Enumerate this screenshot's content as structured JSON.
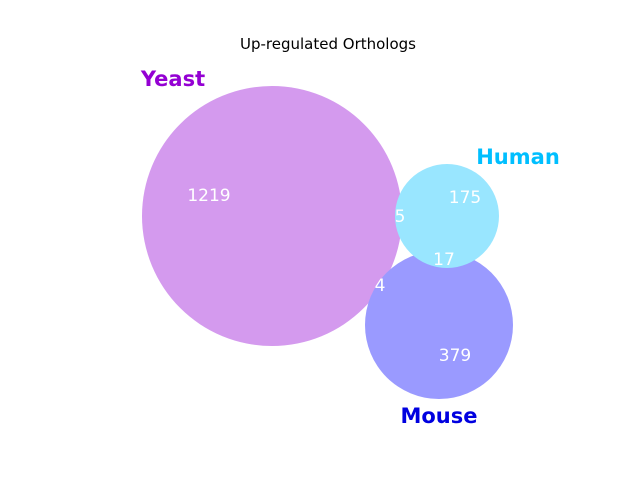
{
  "chart_data": {
    "type": "venn",
    "title": "Up-regulated Orthologs",
    "sets": [
      {
        "name": "Yeast",
        "size": 1228,
        "label_color": "#9400d3",
        "fill": "#d49aee"
      },
      {
        "name": "Human",
        "size": 197,
        "label_color": "#00bfff",
        "fill": "#99e6ff"
      },
      {
        "name": "Mouse",
        "size": 400,
        "label_color": "#0000e0",
        "fill": "#9a9aff"
      }
    ],
    "regions": [
      {
        "sets": [
          "Yeast"
        ],
        "value": "1219"
      },
      {
        "sets": [
          "Human"
        ],
        "value": "175"
      },
      {
        "sets": [
          "Mouse"
        ],
        "value": "379"
      },
      {
        "sets": [
          "Yeast",
          "Human"
        ],
        "value": "5"
      },
      {
        "sets": [
          "Yeast",
          "Mouse"
        ],
        "value": "4"
      },
      {
        "sets": [
          "Human",
          "Mouse"
        ],
        "value": "17"
      }
    ]
  }
}
